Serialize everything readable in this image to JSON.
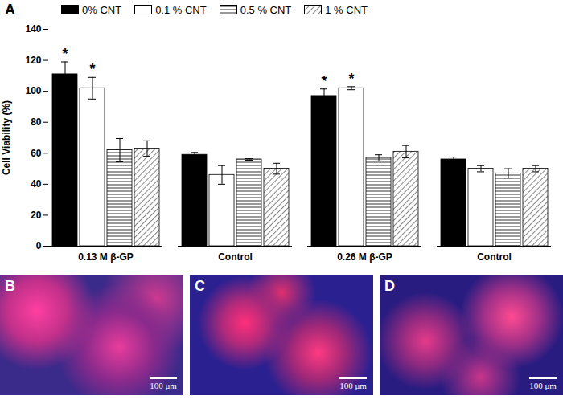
{
  "chart_data": {
    "type": "bar",
    "panel_label": "A",
    "categories": [
      "0.13 M β-GP",
      "Control",
      "0.26 M β-GP",
      "Control"
    ],
    "y_label": "Cell Viability (%)",
    "ylim": [
      0,
      140
    ],
    "yticks": [
      0,
      20,
      40,
      60,
      80,
      100,
      120,
      140
    ],
    "grid": false,
    "legend": "top",
    "series": [
      {
        "name": "0% CNT",
        "color": "#000000",
        "values": [
          111,
          59,
          97,
          56
        ],
        "errors": [
          8,
          1.5,
          4.5,
          1.5
        ],
        "annotations": [
          "*",
          null,
          "*",
          null
        ]
      },
      {
        "name": "0.1 % CNT",
        "color": "#ffffff",
        "values": [
          102,
          46,
          102,
          50
        ],
        "errors": [
          7,
          6,
          1,
          2
        ],
        "annotations": [
          "*",
          null,
          "*",
          null
        ]
      },
      {
        "name": "0.5 % CNT",
        "color": "#ffffff",
        "values": [
          62,
          56,
          57,
          47
        ],
        "errors": [
          7.5,
          0.5,
          2,
          3
        ],
        "annotations": [
          null,
          null,
          null,
          null
        ]
      },
      {
        "name": "1 % CNT",
        "color": "#ffffff",
        "values": [
          63,
          50,
          61,
          50
        ],
        "errors": [
          5,
          3.5,
          4,
          2
        ],
        "annotations": [
          null,
          null,
          null,
          null
        ]
      }
    ]
  },
  "panels": [
    {
      "label": "B",
      "scale_bar": "100 μm"
    },
    {
      "label": "C",
      "scale_bar": "100 μm"
    },
    {
      "label": "D",
      "scale_bar": "100 μm"
    }
  ]
}
